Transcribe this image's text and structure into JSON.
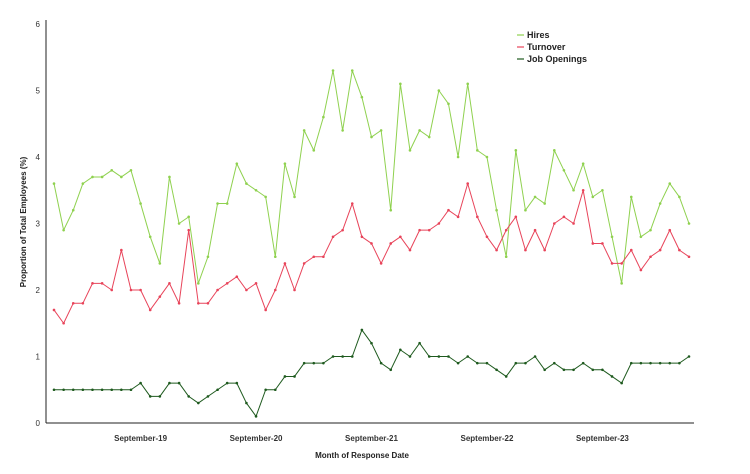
{
  "chart_data": {
    "type": "line",
    "xlabel": "Month of Response Date",
    "ylabel": "Proportion of Total Employees (%)",
    "ylim": [
      0,
      6
    ],
    "y_ticks": [
      0,
      1,
      2,
      3,
      4,
      5,
      6
    ],
    "month_labels": [
      "September-19",
      "September-20",
      "September-21",
      "September-22",
      "September-23"
    ],
    "grid": false,
    "legend_position": "top-right",
    "series": [
      {
        "name": "Hires",
        "color": "#8fd14f",
        "values": [
          3.6,
          2.9,
          3.2,
          3.6,
          3.7,
          3.7,
          3.8,
          3.7,
          3.8,
          3.3,
          2.8,
          2.4,
          3.7,
          3.0,
          3.1,
          2.1,
          2.5,
          3.3,
          3.3,
          3.9,
          3.6,
          3.5,
          3.4,
          2.5,
          3.9,
          3.4,
          4.4,
          4.1,
          4.6,
          5.3,
          4.4,
          5.3,
          4.9,
          4.3,
          4.4,
          3.2,
          5.1,
          4.1,
          4.4,
          4.3,
          5.0,
          4.8,
          4.0,
          5.1,
          4.1,
          4.0,
          3.2,
          2.5,
          4.1,
          3.2,
          3.4,
          3.3,
          4.1,
          3.8,
          3.5,
          3.9,
          3.4,
          3.5,
          2.8,
          2.1,
          3.4,
          2.8,
          2.9,
          3.3,
          3.6,
          3.4,
          3.0
        ]
      },
      {
        "name": "Turnover",
        "color": "#e8445a",
        "values": [
          1.7,
          1.5,
          1.8,
          1.8,
          2.1,
          2.1,
          2.0,
          2.6,
          2.0,
          2.0,
          1.7,
          1.9,
          2.1,
          1.8,
          2.9,
          1.8,
          1.8,
          2.0,
          2.1,
          2.2,
          2.0,
          2.1,
          1.7,
          2.0,
          2.4,
          2.0,
          2.4,
          2.5,
          2.5,
          2.8,
          2.9,
          3.3,
          2.8,
          2.7,
          2.4,
          2.7,
          2.8,
          2.6,
          2.9,
          2.9,
          3.0,
          3.2,
          3.1,
          3.6,
          3.1,
          2.8,
          2.6,
          2.9,
          3.1,
          2.6,
          2.9,
          2.6,
          3.0,
          3.1,
          3.0,
          3.5,
          2.7,
          2.7,
          2.4,
          2.4,
          2.6,
          2.3,
          2.5,
          2.6,
          2.9,
          2.6,
          2.5
        ]
      },
      {
        "name": "Job Openings",
        "color": "#1e5a1e",
        "values": [
          0.5,
          0.5,
          0.5,
          0.5,
          0.5,
          0.5,
          0.5,
          0.5,
          0.5,
          0.6,
          0.4,
          0.4,
          0.6,
          0.6,
          0.4,
          0.3,
          0.4,
          0.5,
          0.6,
          0.6,
          0.3,
          0.1,
          0.5,
          0.5,
          0.7,
          0.7,
          0.9,
          0.9,
          0.9,
          1.0,
          1.0,
          1.0,
          1.4,
          1.2,
          0.9,
          0.8,
          1.1,
          1.0,
          1.2,
          1.0,
          1.0,
          1.0,
          0.9,
          1.0,
          0.9,
          0.9,
          0.8,
          0.7,
          0.9,
          0.9,
          1.0,
          0.8,
          0.9,
          0.8,
          0.8,
          0.9,
          0.8,
          0.8,
          0.7,
          0.6,
          0.9,
          0.9,
          0.9,
          0.9,
          0.9,
          0.9,
          1.0
        ]
      }
    ]
  }
}
